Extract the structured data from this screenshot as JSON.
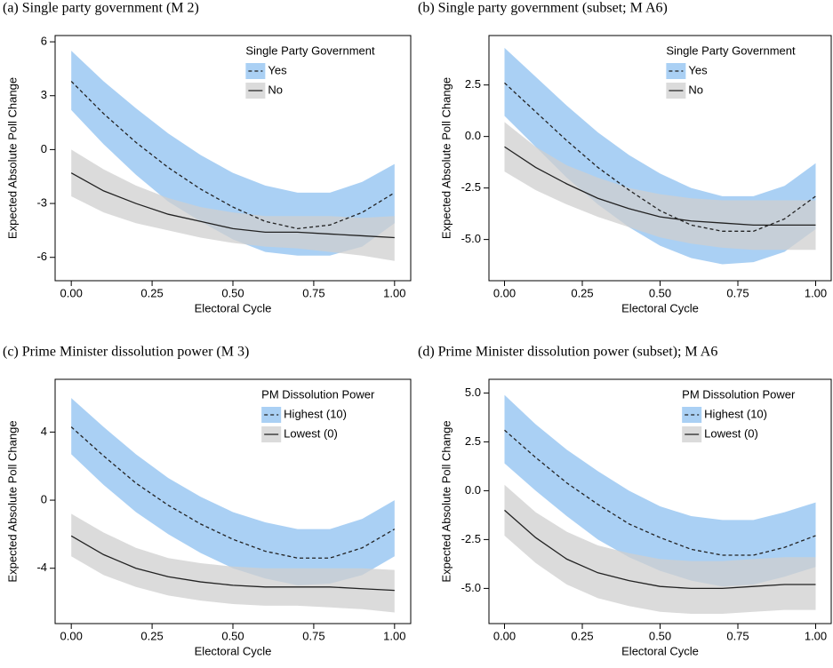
{
  "chart_data": [
    {
      "type": "line",
      "title": "(a) Single party government (M 2)",
      "xlabel": "Electoral Cycle",
      "ylabel": "Expected Absolute Poll Change",
      "legend_title": "Single Party Government",
      "legend": "upper right",
      "x": [
        0,
        0.1,
        0.2,
        0.3,
        0.4,
        0.5,
        0.6,
        0.7,
        0.8,
        0.9,
        1.0
      ],
      "series": [
        {
          "name": "Yes",
          "color": "#8ec0f0",
          "dash": true,
          "values": [
            3.8,
            2.0,
            0.4,
            -1.0,
            -2.2,
            -3.2,
            -4.0,
            -4.4,
            -4.2,
            -3.5,
            -2.4
          ],
          "upper": [
            5.5,
            3.8,
            2.3,
            0.9,
            -0.3,
            -1.3,
            -2.0,
            -2.4,
            -2.4,
            -1.8,
            -0.8
          ],
          "lower": [
            2.2,
            0.3,
            -1.4,
            -2.9,
            -4.0,
            -5.0,
            -5.7,
            -5.9,
            -5.9,
            -5.4,
            -4.1
          ]
        },
        {
          "name": "No",
          "color": "#cfcfcf",
          "dash": false,
          "values": [
            -1.3,
            -2.3,
            -3.0,
            -3.6,
            -4.0,
            -4.4,
            -4.6,
            -4.6,
            -4.7,
            -4.8,
            -4.9
          ],
          "upper": [
            0,
            -1.1,
            -2.0,
            -2.7,
            -3.2,
            -3.5,
            -3.7,
            -3.7,
            -3.7,
            -3.8,
            -3.7
          ],
          "lower": [
            -2.6,
            -3.5,
            -4.1,
            -4.5,
            -4.9,
            -5.2,
            -5.4,
            -5.5,
            -5.7,
            -5.9,
            -6.2
          ]
        }
      ],
      "xlim": [
        -0.05,
        1.05
      ],
      "ylim": [
        -7.3,
        6.35
      ],
      "xticks": [
        {
          "value": 0,
          "label": "0.00"
        },
        {
          "value": 0.25,
          "label": "0.25"
        },
        {
          "value": 0.5,
          "label": "0.50"
        },
        {
          "value": 0.75,
          "label": "0.75"
        },
        {
          "value": 1,
          "label": "1.00"
        }
      ],
      "yticks": [
        -6,
        -3,
        0,
        3,
        6
      ]
    },
    {
      "type": "line",
      "title": "(b) Single party government (subset; M A6)",
      "xlabel": "Electoral Cycle",
      "ylabel": "Expected Absolute Poll Change",
      "legend_title": "Single Party Government",
      "legend": "upper right",
      "x": [
        0,
        0.1,
        0.2,
        0.3,
        0.4,
        0.5,
        0.6,
        0.7,
        0.8,
        0.9,
        1.0
      ],
      "series": [
        {
          "name": "Yes",
          "color": "#8ec0f0",
          "dash": true,
          "values": [
            2.6,
            1.2,
            -0.2,
            -1.5,
            -2.6,
            -3.6,
            -4.3,
            -4.6,
            -4.6,
            -4.0,
            -2.9
          ],
          "upper": [
            4.3,
            2.9,
            1.5,
            0.2,
            -0.9,
            -1.8,
            -2.5,
            -2.9,
            -2.9,
            -2.4,
            -1.3
          ],
          "lower": [
            1.0,
            -0.5,
            -2.0,
            -3.3,
            -4.4,
            -5.3,
            -5.9,
            -6.2,
            -6.1,
            -5.6,
            -4.5
          ]
        },
        {
          "name": "No",
          "color": "#cfcfcf",
          "dash": false,
          "values": [
            -0.5,
            -1.5,
            -2.3,
            -3.0,
            -3.5,
            -3.9,
            -4.1,
            -4.2,
            -4.3,
            -4.3,
            -4.3
          ],
          "upper": [
            0.7,
            -0.5,
            -1.4,
            -2.0,
            -2.5,
            -2.8,
            -3.0,
            -3.1,
            -3.1,
            -3.1,
            -3.1
          ],
          "lower": [
            -1.7,
            -2.6,
            -3.3,
            -3.9,
            -4.4,
            -4.9,
            -5.2,
            -5.4,
            -5.5,
            -5.5,
            -5.5
          ]
        }
      ],
      "xlim": [
        -0.05,
        1.05
      ],
      "ylim": [
        -7.0,
        4.9
      ],
      "xticks": [
        {
          "value": 0,
          "label": "0.00"
        },
        {
          "value": 0.25,
          "label": "0.25"
        },
        {
          "value": 0.5,
          "label": "0.50"
        },
        {
          "value": 0.75,
          "label": "0.75"
        },
        {
          "value": 1,
          "label": "1.00"
        }
      ],
      "yticks": [
        {
          "value": -5,
          "label": "-5.0"
        },
        -2.5,
        {
          "value": 0,
          "label": "0.0"
        },
        2.5
      ]
    },
    {
      "type": "line",
      "title": "(c) Prime Minister dissolution power (M 3)",
      "xlabel": "Electoral Cycle",
      "ylabel": "Expected Absolute Poll Change",
      "legend_title": "PM Dissolution Power",
      "legend": "upper right",
      "x": [
        0,
        0.1,
        0.2,
        0.3,
        0.4,
        0.5,
        0.6,
        0.7,
        0.8,
        0.9,
        1.0
      ],
      "series": [
        {
          "name": "Highest (10)",
          "color": "#8ec0f0",
          "dash": true,
          "values": [
            4.3,
            2.6,
            1.0,
            -0.3,
            -1.4,
            -2.3,
            -3.0,
            -3.4,
            -3.4,
            -2.8,
            -1.7
          ],
          "upper": [
            6.0,
            4.3,
            2.7,
            1.3,
            0.2,
            -0.7,
            -1.3,
            -1.7,
            -1.7,
            -1.1,
            0
          ],
          "lower": [
            2.7,
            0.9,
            -0.7,
            -2.0,
            -3.1,
            -4.0,
            -4.6,
            -5.0,
            -4.9,
            -4.4,
            -3.3
          ]
        },
        {
          "name": "Lowest (0)",
          "color": "#cfcfcf",
          "dash": false,
          "values": [
            -2.1,
            -3.2,
            -4.0,
            -4.5,
            -4.8,
            -5.0,
            -5.1,
            -5.1,
            -5.1,
            -5.2,
            -5.3
          ],
          "upper": [
            -0.8,
            -1.9,
            -2.8,
            -3.4,
            -3.7,
            -3.9,
            -4.0,
            -4.0,
            -4.0,
            -4.0,
            -4.1
          ],
          "lower": [
            -3.3,
            -4.4,
            -5.1,
            -5.6,
            -5.9,
            -6.1,
            -6.2,
            -6.2,
            -6.3,
            -6.4,
            -6.6
          ]
        }
      ],
      "xlim": [
        -0.05,
        1.05
      ],
      "ylim": [
        -7.25,
        7.1
      ],
      "xticks": [
        {
          "value": 0,
          "label": "0.00"
        },
        {
          "value": 0.25,
          "label": "0.25"
        },
        {
          "value": 0.5,
          "label": "0.50"
        },
        {
          "value": 0.75,
          "label": "0.75"
        },
        {
          "value": 1,
          "label": "1.00"
        }
      ],
      "yticks": [
        -4,
        0,
        4
      ]
    },
    {
      "type": "line",
      "title": "(d) Prime Minister dissolution power (subset); M A6",
      "xlabel": "Electoral Cycle",
      "ylabel": "Expected Absolute Poll Change",
      "legend_title": "PM Dissolution Power",
      "legend": "upper right",
      "x": [
        0,
        0.1,
        0.2,
        0.3,
        0.4,
        0.5,
        0.6,
        0.7,
        0.8,
        0.9,
        1.0
      ],
      "series": [
        {
          "name": "Highest (10)",
          "color": "#8ec0f0",
          "dash": true,
          "values": [
            3.1,
            1.7,
            0.4,
            -0.7,
            -1.7,
            -2.4,
            -3.0,
            -3.3,
            -3.3,
            -2.9,
            -2.3
          ],
          "upper": [
            4.9,
            3.4,
            2.1,
            1.0,
            0,
            -0.8,
            -1.3,
            -1.5,
            -1.5,
            -1.1,
            -0.6
          ],
          "lower": [
            1.4,
            0,
            -1.3,
            -2.5,
            -3.4,
            -4.1,
            -4.6,
            -4.9,
            -4.8,
            -4.4,
            -3.9
          ]
        },
        {
          "name": "Lowest (0)",
          "color": "#cfcfcf",
          "dash": false,
          "values": [
            -1.0,
            -2.4,
            -3.5,
            -4.2,
            -4.6,
            -4.9,
            -5.0,
            -5.0,
            -4.9,
            -4.8,
            -4.8
          ],
          "upper": [
            0.3,
            -1.1,
            -2.1,
            -2.8,
            -3.2,
            -3.5,
            -3.6,
            -3.6,
            -3.5,
            -3.4,
            -3.4
          ],
          "lower": [
            -2.3,
            -3.7,
            -4.8,
            -5.5,
            -5.9,
            -6.2,
            -6.3,
            -6.3,
            -6.2,
            -6.1,
            -6.1
          ]
        }
      ],
      "xlim": [
        -0.05,
        1.05
      ],
      "ylim": [
        -6.8,
        5.7
      ],
      "xticks": [
        {
          "value": 0,
          "label": "0.00"
        },
        {
          "value": 0.25,
          "label": "0.25"
        },
        {
          "value": 0.5,
          "label": "0.50"
        },
        {
          "value": 0.75,
          "label": "0.75"
        },
        {
          "value": 1,
          "label": "1.00"
        }
      ],
      "yticks": [
        {
          "value": -5,
          "label": "-5.0"
        },
        -2.5,
        {
          "value": 0,
          "label": "0.0"
        },
        2.5,
        {
          "value": 5,
          "label": "5.0"
        }
      ]
    }
  ]
}
